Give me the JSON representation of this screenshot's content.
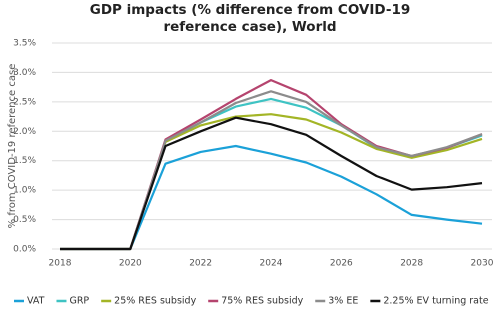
{
  "chart_data": {
    "type": "line",
    "title": "GDP impacts (% difference from COVID-19 reference case), World",
    "y_label": "% from COVID-19 reference case",
    "x": [
      2018,
      2019,
      2020,
      2021,
      2022,
      2023,
      2024,
      2025,
      2026,
      2027,
      2028,
      2029,
      2030
    ],
    "xlim": [
      2018,
      2030
    ],
    "xticks": [
      2018,
      2020,
      2022,
      2024,
      2026,
      2028,
      2030
    ],
    "ylim": [
      0,
      3.5
    ],
    "yticks": [
      {
        "value": 0,
        "label": "0.0%"
      },
      {
        "value": 0.5,
        "label": "0.5%"
      },
      {
        "value": 1,
        "label": "1.0%"
      },
      {
        "value": 1.5,
        "label": "1.5%"
      },
      {
        "value": 2,
        "label": "2.0%"
      },
      {
        "value": 2.5,
        "label": "2.5%"
      },
      {
        "value": 3,
        "label": "3.0%"
      },
      {
        "value": 3.5,
        "label": "3.5%"
      }
    ],
    "grid": true,
    "legend": "bottom",
    "series": [
      {
        "name": "VAT",
        "color": "#1ba1d8",
        "values": [
          0,
          0,
          0,
          1.45,
          1.65,
          1.75,
          1.62,
          1.47,
          1.23,
          0.93,
          0.58,
          0.5,
          0.43
        ]
      },
      {
        "name": "GRP",
        "color": "#3ec3c3",
        "values": [
          0,
          0,
          0,
          1.83,
          2.15,
          2.42,
          2.55,
          2.4,
          2.1,
          1.72,
          1.57,
          1.72,
          1.93
        ]
      },
      {
        "name": "25% RES subsidy",
        "color": "#a3b526",
        "values": [
          0,
          0,
          0,
          1.82,
          2.1,
          2.25,
          2.29,
          2.2,
          1.98,
          1.7,
          1.55,
          1.68,
          1.87
        ]
      },
      {
        "name": "75% RES subsidy",
        "color": "#b5446e",
        "values": [
          0,
          0,
          0,
          1.86,
          2.2,
          2.55,
          2.87,
          2.62,
          2.12,
          1.75,
          1.58,
          1.72,
          1.95
        ]
      },
      {
        "name": "3% EE",
        "color": "#8c8c8c",
        "values": [
          0,
          0,
          0,
          1.84,
          2.15,
          2.48,
          2.68,
          2.5,
          2.1,
          1.73,
          1.58,
          1.73,
          1.95
        ]
      },
      {
        "name": "2.25% EV turning rate",
        "color": "#111111",
        "values": [
          0,
          0,
          0,
          1.75,
          2.0,
          2.23,
          2.12,
          1.94,
          1.58,
          1.24,
          1.01,
          1.05,
          1.12
        ]
      }
    ]
  }
}
